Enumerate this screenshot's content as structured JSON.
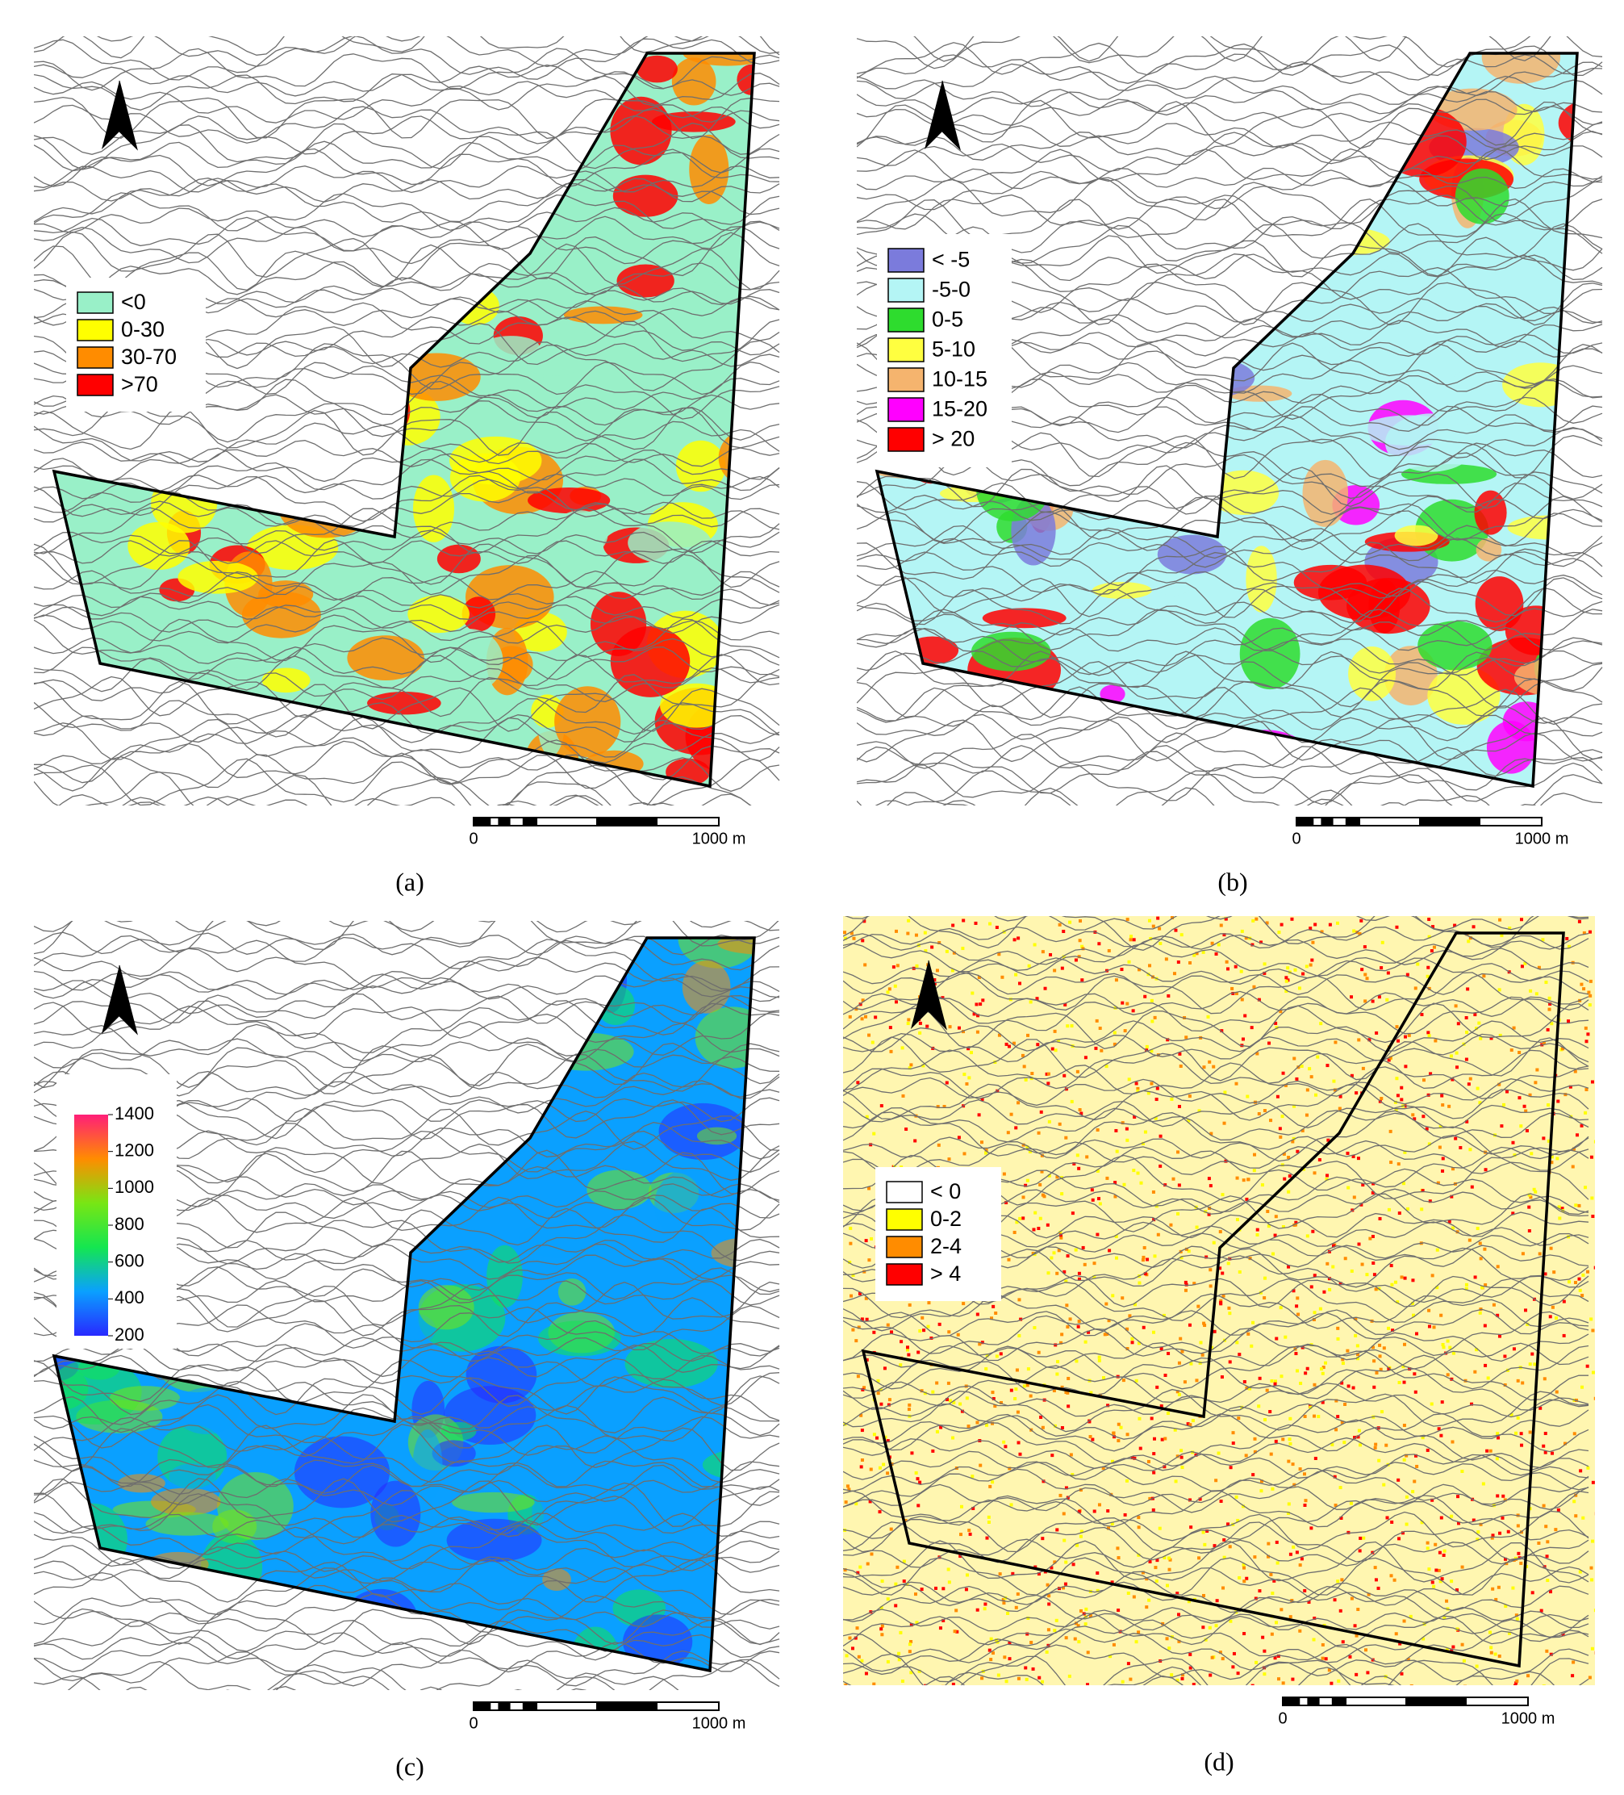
{
  "panels": [
    {
      "caption": "(a)",
      "legend": {
        "type": "categorical",
        "items": [
          {
            "label": "<0",
            "color": "#99f0c8"
          },
          {
            "label": "0-30",
            "color": "#ffff00"
          },
          {
            "label": "30-70",
            "color": "#ff8c00"
          },
          {
            "label": ">70",
            "color": "#ff0000"
          }
        ]
      },
      "scale_bar": {
        "start": "0",
        "end": "1000 m"
      }
    },
    {
      "caption": "(b)",
      "legend": {
        "type": "categorical",
        "items": [
          {
            "label": "< -5",
            "color": "#7b7bdc"
          },
          {
            "label": "-5-0",
            "color": "#b4f5f5"
          },
          {
            "label": "0-5",
            "color": "#2edc2e"
          },
          {
            "label": "5-10",
            "color": "#ffff40"
          },
          {
            "label": "10-15",
            "color": "#f5b46e"
          },
          {
            "label": "15-20",
            "color": "#ff00ff"
          },
          {
            "label": "> 20",
            "color": "#ff0000"
          }
        ]
      },
      "scale_bar": {
        "start": "0",
        "end": "1000 m"
      }
    },
    {
      "caption": "(c)",
      "legend": {
        "type": "colorbar",
        "ylim": [
          200,
          1400
        ],
        "yticks": [
          200,
          400,
          600,
          800,
          1000,
          1200,
          1400
        ],
        "colors": [
          "#2828ff",
          "#0aa0ff",
          "#14e650",
          "#78e614",
          "#ff8c00",
          "#ff1e78"
        ]
      },
      "scale_bar": {
        "start": "0",
        "end": "1000 m"
      }
    },
    {
      "caption": "(d)",
      "legend": {
        "type": "categorical",
        "items": [
          {
            "label": "< 0",
            "color": "#ffffff"
          },
          {
            "label": "0-2",
            "color": "#ffff00"
          },
          {
            "label": "2-4",
            "color": "#ff8c00"
          },
          {
            "label": "> 4",
            "color": "#ff0000"
          }
        ]
      },
      "scale_bar": {
        "start": "0",
        "end": "1000 m"
      }
    }
  ]
}
